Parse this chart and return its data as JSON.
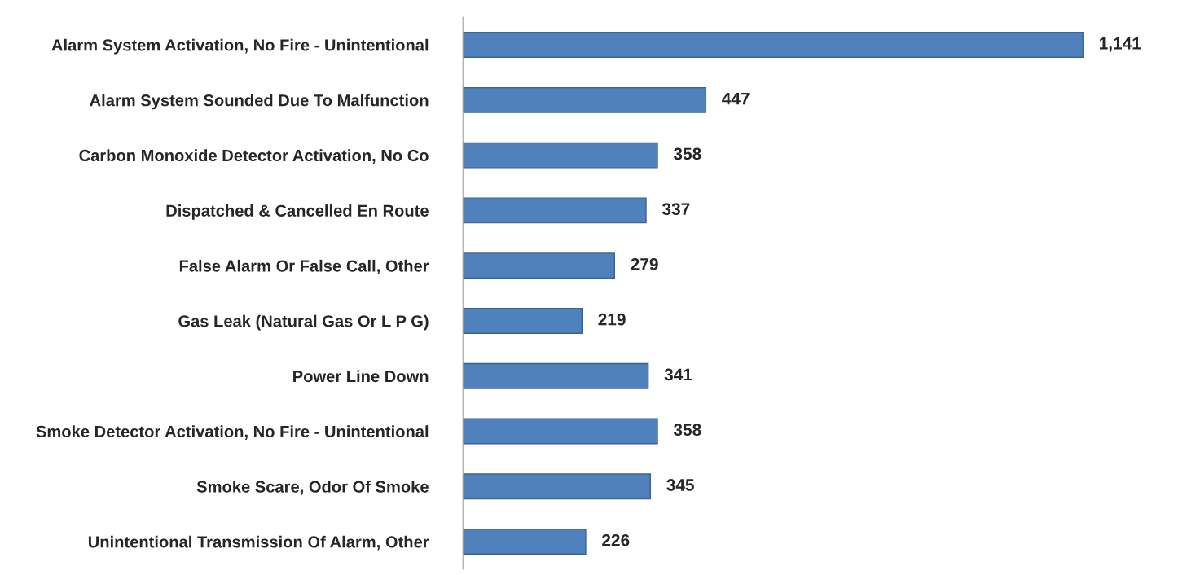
{
  "chart_data": {
    "type": "bar",
    "orientation": "horizontal",
    "color": "#4f81bd",
    "categories": [
      "Alarm System Activation, No Fire - Unintentional",
      "Alarm System Sounded Due To Malfunction",
      "Carbon Monoxide Detector Activation, No Co",
      "Dispatched & Cancelled En Route",
      "False Alarm Or False Call, Other",
      "Gas Leak (Natural Gas Or L P G)",
      "Power Line Down",
      "Smoke Detector Activation, No Fire - Unintentional",
      "Smoke Scare, Odor Of Smoke",
      "Unintentional Transmission Of Alarm, Other"
    ],
    "values": [
      1141,
      447,
      358,
      337,
      279,
      219,
      341,
      358,
      345,
      226
    ],
    "value_labels": [
      "1,141",
      "447",
      "358",
      "337",
      "279",
      "219",
      "341",
      "358",
      "345",
      "226"
    ],
    "grid": false,
    "legend": false
  }
}
